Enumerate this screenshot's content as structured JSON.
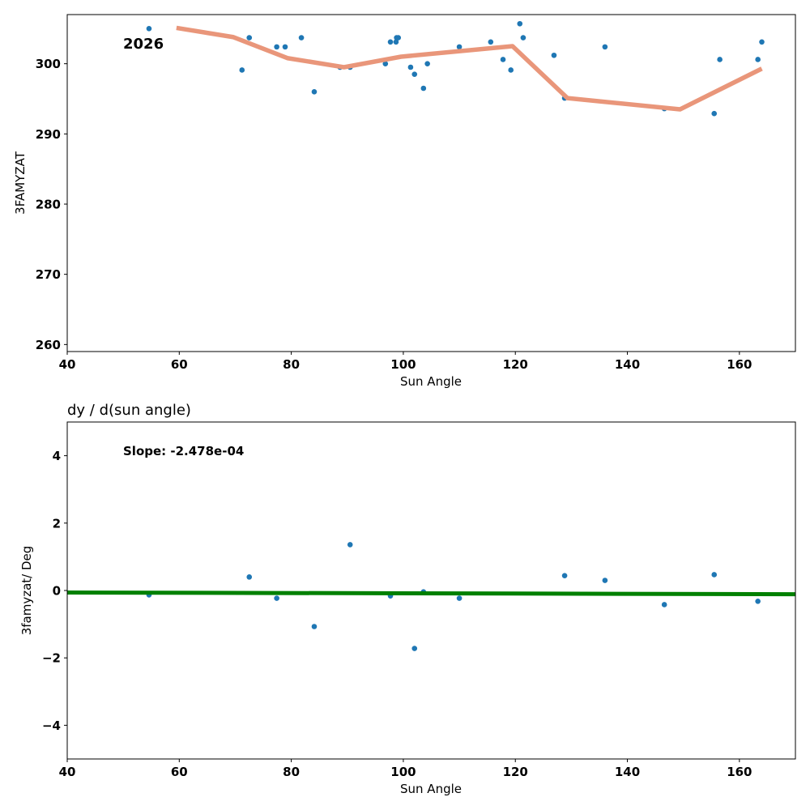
{
  "chart_data": [
    {
      "type": "scatter",
      "title": "",
      "annotation": "2026",
      "xlabel": "Sun Angle",
      "ylabel": "3FAMYZAT",
      "xlim": [
        40,
        170
      ],
      "ylim": [
        259,
        307
      ],
      "xticks": [
        40,
        60,
        80,
        100,
        120,
        140,
        160
      ],
      "yticks": [
        260,
        270,
        280,
        290,
        300
      ],
      "grid": false,
      "colors": {
        "points": "#1f77b4",
        "line": "#e9967a"
      },
      "series": [
        {
          "name": "points",
          "type": "scatter",
          "x": [
            54.6,
            71.2,
            72.5,
            77.4,
            78.9,
            81.8,
            84.1,
            88.7,
            90.5,
            96.8,
            97.7,
            98.7,
            98.8,
            99.1,
            101.3,
            102.0,
            103.6,
            104.3,
            110.0,
            115.6,
            117.8,
            119.2,
            120.8,
            121.4,
            126.9,
            128.8,
            136.0,
            146.6,
            155.5,
            156.5,
            163.3,
            164.0
          ],
          "y": [
            305.0,
            299.1,
            303.7,
            302.4,
            302.4,
            303.7,
            296.0,
            299.5,
            299.5,
            300.0,
            303.1,
            303.1,
            303.7,
            303.7,
            299.5,
            298.5,
            296.5,
            300.0,
            302.4,
            303.1,
            300.6,
            299.1,
            305.7,
            303.7,
            301.2,
            295.1,
            302.4,
            293.6,
            292.9,
            300.6,
            300.6,
            303.1
          ]
        },
        {
          "name": "binned mean",
          "type": "line",
          "x": [
            59.5,
            69.6,
            79.3,
            89.4,
            99.6,
            119.5,
            129.3,
            149.4,
            164.0
          ],
          "y": [
            305.1,
            303.8,
            300.8,
            299.5,
            301.0,
            302.5,
            295.1,
            293.5,
            299.3
          ]
        }
      ]
    },
    {
      "type": "scatter",
      "title": "dy / d(sun angle)",
      "annotation": "Slope: -2.478e-04",
      "xlabel": "Sun Angle",
      "ylabel": "3famyzat/ Deg",
      "xlim": [
        40,
        170
      ],
      "ylim": [
        -5,
        5
      ],
      "xticks": [
        40,
        60,
        80,
        100,
        120,
        140,
        160
      ],
      "yticks": [
        -4,
        -2,
        0,
        2,
        4
      ],
      "ytick_labels": [
        "−4",
        "−2",
        "0",
        "2",
        "4"
      ],
      "grid": false,
      "colors": {
        "points": "#1f77b4",
        "line": "#008000"
      },
      "series": [
        {
          "name": "derivative",
          "type": "scatter",
          "x": [
            54.6,
            72.5,
            77.4,
            84.1,
            90.5,
            97.7,
            102.0,
            103.6,
            110.0,
            128.8,
            136.0,
            146.6,
            155.5,
            163.3
          ],
          "y": [
            -0.13,
            0.4,
            -0.23,
            -1.07,
            1.36,
            -0.16,
            -1.72,
            -0.04,
            -0.23,
            0.44,
            0.3,
            -0.42,
            0.47,
            -0.32
          ]
        },
        {
          "name": "fit",
          "type": "line",
          "x": [
            40,
            170
          ],
          "y": [
            -0.06,
            -0.11
          ]
        }
      ]
    }
  ]
}
